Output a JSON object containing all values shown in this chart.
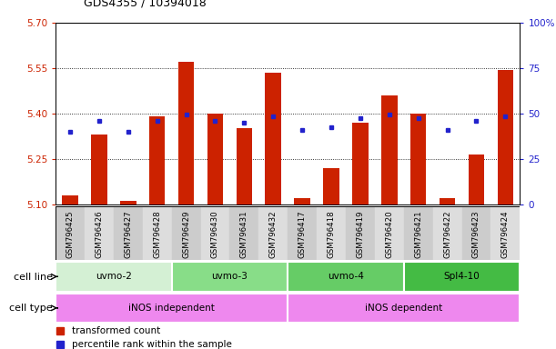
{
  "title": "GDS4355 / 10394018",
  "samples": [
    "GSM796425",
    "GSM796426",
    "GSM796427",
    "GSM796428",
    "GSM796429",
    "GSM796430",
    "GSM796431",
    "GSM796432",
    "GSM796417",
    "GSM796418",
    "GSM796419",
    "GSM796420",
    "GSM796421",
    "GSM796422",
    "GSM796423",
    "GSM796424"
  ],
  "bar_values": [
    5.13,
    5.33,
    5.11,
    5.39,
    5.57,
    5.4,
    5.35,
    5.535,
    5.12,
    5.22,
    5.37,
    5.46,
    5.4,
    5.12,
    5.265,
    5.545
  ],
  "blue_values": [
    5.34,
    5.375,
    5.34,
    5.375,
    5.395,
    5.375,
    5.37,
    5.39,
    5.345,
    5.355,
    5.385,
    5.395,
    5.385,
    5.345,
    5.375,
    5.39
  ],
  "ylim_left": [
    5.1,
    5.7
  ],
  "ylim_right": [
    0,
    100
  ],
  "yticks_left": [
    5.1,
    5.25,
    5.4,
    5.55,
    5.7
  ],
  "yticks_right": [
    0,
    25,
    50,
    75,
    100
  ],
  "cell_line_groups": [
    {
      "label": "uvmo-2",
      "start": 0,
      "end": 4,
      "color": "#d4f0d4"
    },
    {
      "label": "uvmo-3",
      "start": 4,
      "end": 8,
      "color": "#88dd88"
    },
    {
      "label": "uvmo-4",
      "start": 8,
      "end": 12,
      "color": "#66cc66"
    },
    {
      "label": "Spl4-10",
      "start": 12,
      "end": 16,
      "color": "#44bb44"
    }
  ],
  "cell_type_groups": [
    {
      "label": "iNOS independent",
      "start": 0,
      "end": 8,
      "color": "#ee88ee"
    },
    {
      "label": "iNOS dependent",
      "start": 8,
      "end": 16,
      "color": "#ee88ee"
    }
  ],
  "bar_color": "#cc2200",
  "blue_color": "#2222cc",
  "bg_color": "#ffffff",
  "axis_color_left": "#cc2200",
  "axis_color_right": "#2222cc",
  "bar_width": 0.55,
  "base_value": 5.1
}
